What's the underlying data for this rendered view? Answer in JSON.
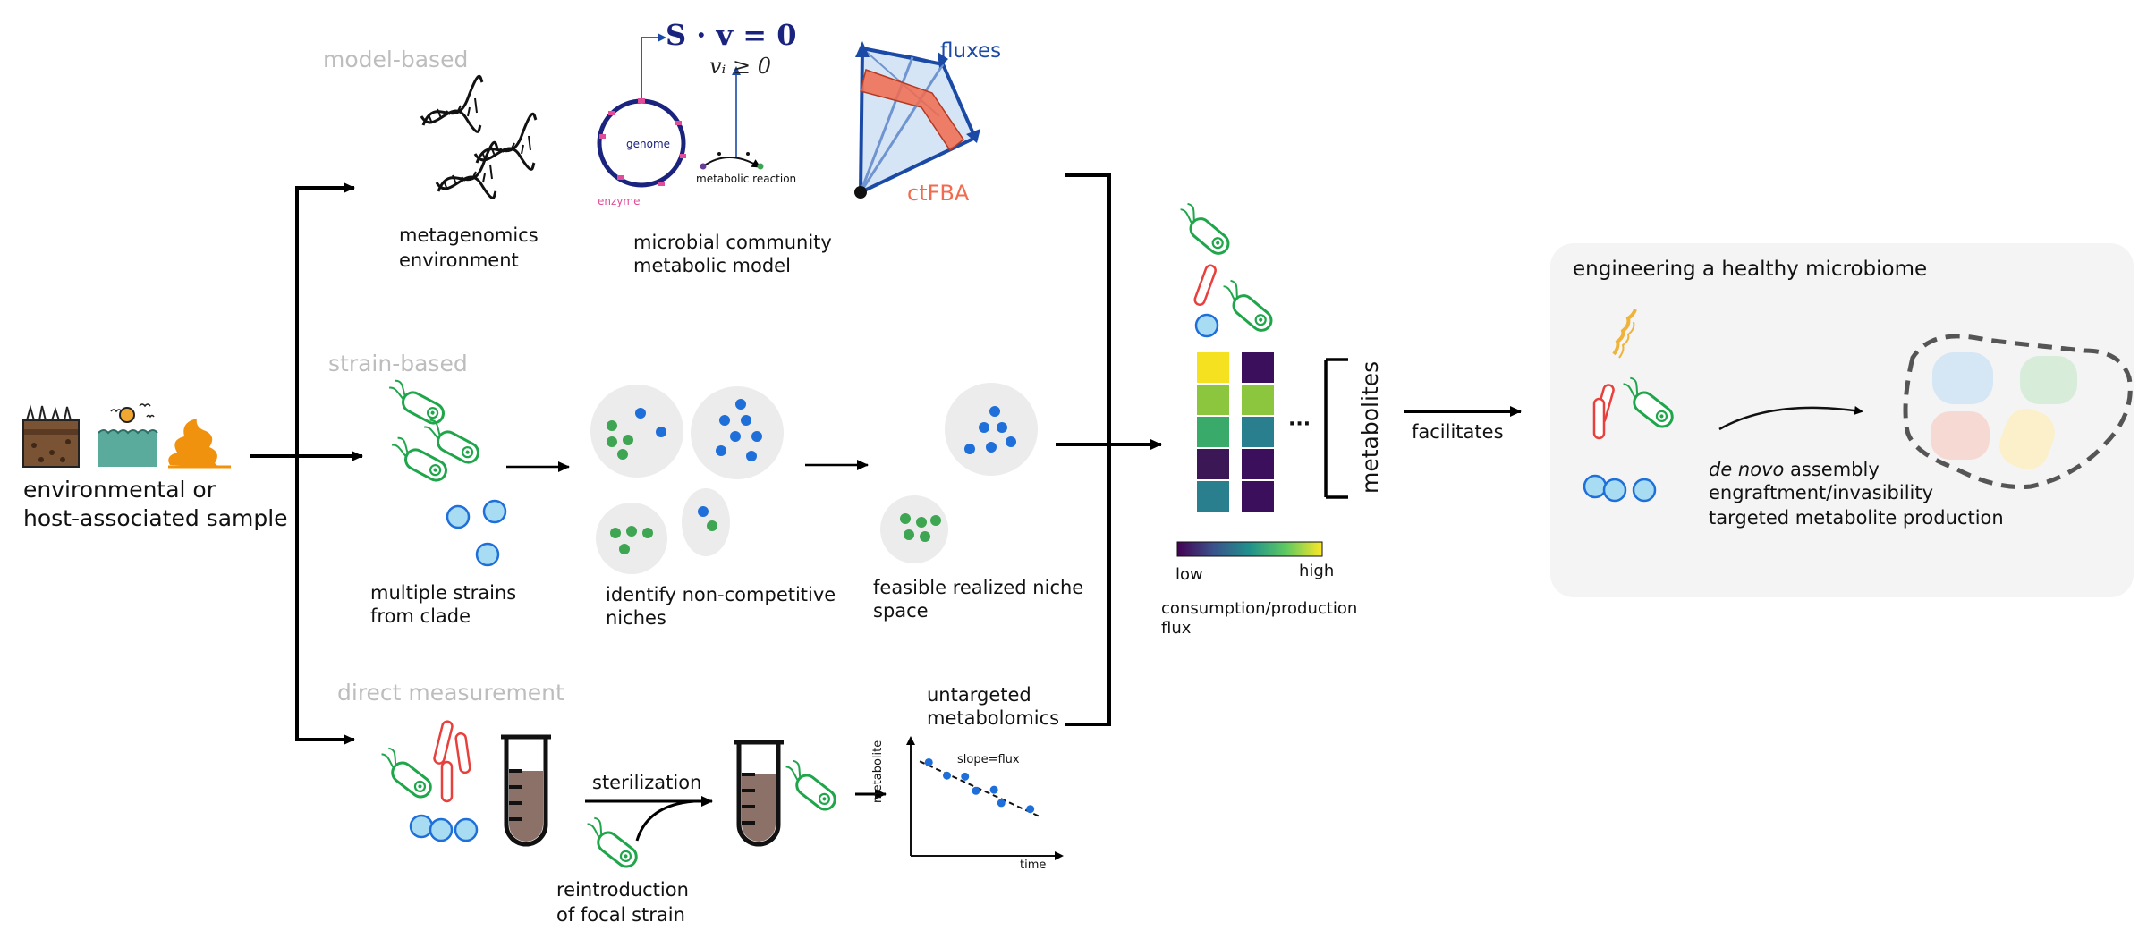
{
  "source_sample": {
    "label_line1": "environmental or",
    "label_line2": "host-associated sample"
  },
  "sections": {
    "model_based": "model-based",
    "strain_based": "strain-based",
    "direct_measurement": "direct measurement"
  },
  "model_based": {
    "metagenomics_line1": "metagenomics",
    "metagenomics_line2": "environment",
    "genome_label": "genome",
    "enzyme_label": "enzyme",
    "reaction_label": "metabolic reaction",
    "equation_bold": "S · v = 0",
    "constraint": "vᵢ ≥ 0",
    "model_line1": "microbial community",
    "model_line2": "metabolic model",
    "fluxes_label": "fluxes",
    "ctfba_label": "ctFBA"
  },
  "strain_based": {
    "strains_line1": "multiple strains",
    "strains_line2": "from clade",
    "identify_line1": "identify non-competitive",
    "identify_line2": "niches",
    "feasible_line1": "feasible realized niche",
    "feasible_line2": "space"
  },
  "direct_measurement": {
    "sterilization": "sterilization",
    "reintro_line1": "reintroduction",
    "reintro_line2": "of focal strain",
    "untargeted_line1": "untargeted",
    "untargeted_line2": "metabolomics"
  },
  "chart_data": {
    "type": "scatter",
    "xlabel": "time",
    "ylabel": "metabolite",
    "annotation": "slope=flux",
    "points": [
      [
        1,
        9.2
      ],
      [
        2,
        7.9
      ],
      [
        3,
        7.8
      ],
      [
        3.6,
        6.4
      ],
      [
        4.6,
        6.5
      ],
      [
        5,
        5.2
      ],
      [
        6.6,
        4.6
      ]
    ],
    "trendline": [
      [
        0.5,
        9.3
      ],
      [
        7.2,
        3.8
      ]
    ],
    "xlim": [
      0,
      8
    ],
    "ylim": [
      0,
      11
    ],
    "point_color": "#1e6fd9"
  },
  "heatmap": {
    "ellipsis": "···",
    "metabolites_label": "metabolites",
    "colorbar_low": "low",
    "colorbar_high": "high",
    "caption_line1": "consumption/production",
    "caption_line2": "flux",
    "column1_colors": [
      "#f5e11f",
      "#8cc63e",
      "#3aaa6a",
      "#3b1756",
      "#2a7f8e"
    ],
    "column2_colors": [
      "#3b0f5c",
      "#8cc63e",
      "#2a7f8e",
      "#3b0f5c",
      "#3b0f5c"
    ]
  },
  "facilitates": "facilitates",
  "engineering": {
    "title": "engineering a healthy microbiome",
    "item1_italic": "de novo",
    "item1_rest": " assembly",
    "item2": "engraftment/invasibility",
    "item3": "targeted metabolite production"
  },
  "colors": {
    "bacterium_green": "#1fa64a",
    "rod_red": "#e8403c",
    "sphere_blue": "#a8dcf2",
    "dot_green": "#3ea552",
    "dot_blue": "#1e6fd9",
    "flux_blue": "#1a4aa6",
    "ctfba_orange": "#f26b4e",
    "broth_brown": "#8b7168"
  }
}
